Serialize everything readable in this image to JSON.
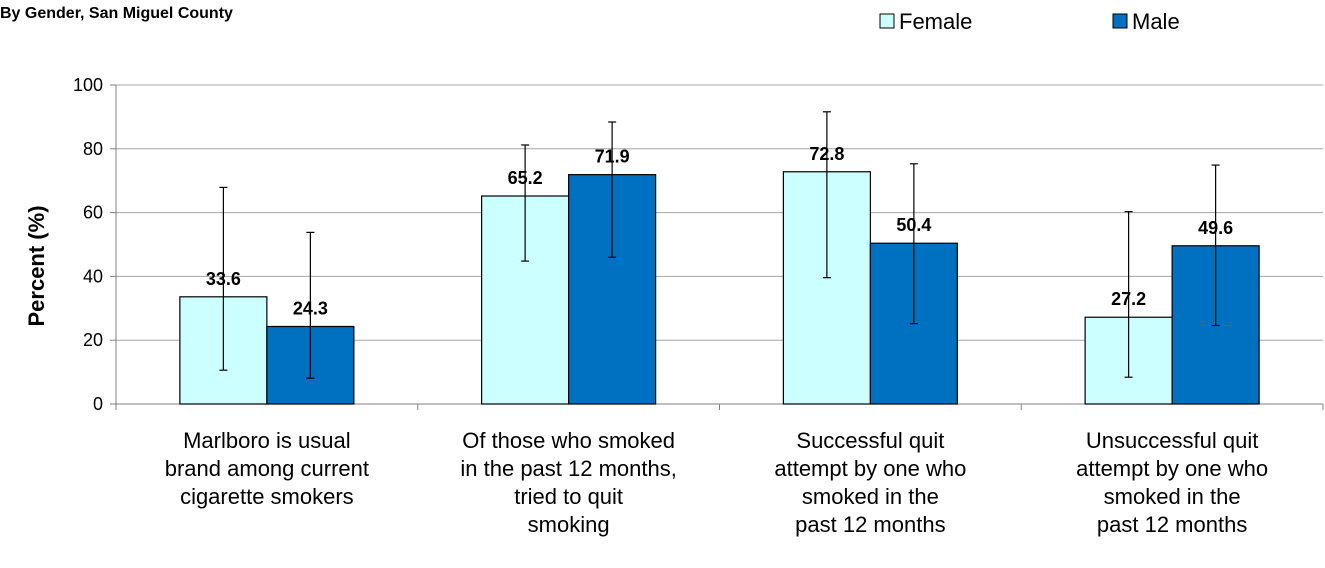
{
  "chart_data": {
    "type": "bar",
    "title": "By Gender, San Miguel County",
    "ylabel": "Percent (%)",
    "xlabel": "",
    "ylim": [
      0,
      100
    ],
    "yticks": [
      0,
      20,
      40,
      60,
      80,
      100
    ],
    "grid": true,
    "legend_position": "top-right",
    "categories": [
      [
        "Marlboro is usual",
        "brand among current",
        "cigarette smokers"
      ],
      [
        "Of those who smoked",
        "in the past 12 months,",
        "tried to quit",
        "smoking"
      ],
      [
        "Successful quit",
        "attempt by one who",
        "smoked in the",
        "past 12 months"
      ],
      [
        "Unsuccessful quit",
        "attempt by one who",
        "smoked in the",
        "past 12 months"
      ]
    ],
    "series": [
      {
        "name": "Female",
        "color": "#CCFFFF",
        "values": [
          33.6,
          65.2,
          72.8,
          27.2
        ],
        "labels": [
          "33.6",
          "65.2",
          "72.8",
          "27.2"
        ],
        "error_low": [
          10.6,
          44.8,
          39.6,
          8.4
        ],
        "error_high": [
          67.9,
          81.2,
          91.6,
          60.3
        ]
      },
      {
        "name": "Male",
        "color": "#0070C0",
        "values": [
          24.3,
          71.9,
          50.4,
          49.6
        ],
        "labels": [
          "24.3",
          "71.9",
          "50.4",
          "49.6"
        ],
        "error_low": [
          8.1,
          46.0,
          25.2,
          24.6
        ],
        "error_high": [
          53.8,
          88.4,
          75.3,
          74.9
        ]
      }
    ]
  }
}
